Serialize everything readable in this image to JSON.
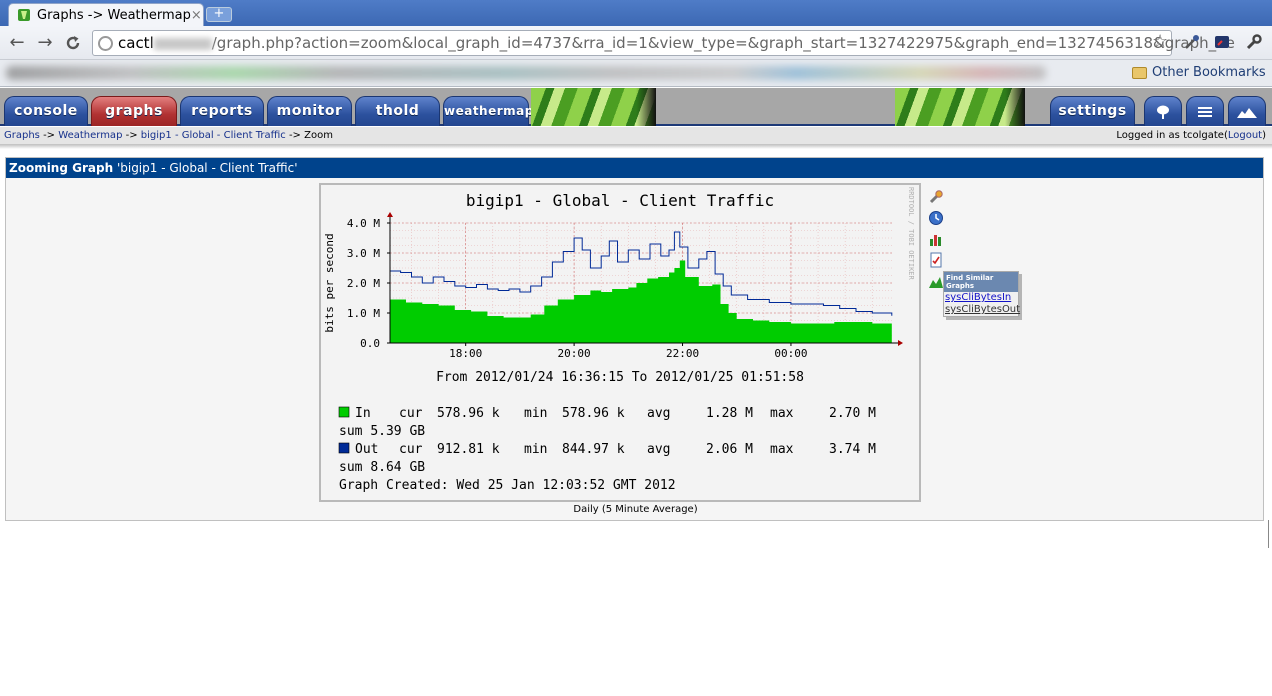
{
  "browser": {
    "tab_title": "Graphs -> Weathermap",
    "tab_close": "×",
    "new_tab": "+",
    "url_host": "cactl",
    "url_rest": "/graph.php?action=zoom&local_graph_id=4737&rra_id=1&view_type=&graph_start=1327422975&graph_end=1327456318&graph_he",
    "nav": {
      "back": "←",
      "forward": "→",
      "reload": "C"
    },
    "star": "☆",
    "other_bookmarks": "Other Bookmarks"
  },
  "cacti": {
    "tabs": [
      "console",
      "graphs",
      "reports",
      "monitor",
      "thold",
      "weathermap"
    ],
    "active_tab": "graphs",
    "right_tab": "settings",
    "icon_tabs": [
      "tree-view",
      "list-view",
      "preview"
    ],
    "breadcrumb": {
      "items": [
        "Graphs",
        "Weathermap",
        "bigip1 - Global - Client Traffic",
        "Zoom"
      ],
      "sep": "->"
    },
    "login": {
      "prefix": "Logged in as ",
      "user": "tcolgate",
      "open": "(",
      "logout": "Logout",
      "close": ")"
    }
  },
  "panel": {
    "title_bold": "Zooming Graph",
    "title_rest": " 'bigip1 - Global - Client Traffic'",
    "caption": "Daily (5 Minute Average)",
    "find_similar": "Find Similar Graphs",
    "similar_links": [
      "sysCliBytesIn",
      "sysCliBytesOut"
    ]
  },
  "chart_data": {
    "type": "area",
    "title": "bigip1 - Global - Client Traffic",
    "ylabel": "bits per second",
    "watermark": "RRDTOOL / TOBI OETIKER",
    "ylim": [
      0,
      4000000
    ],
    "yticks": [
      {
        "v": 0,
        "label": "0.0"
      },
      {
        "v": 1000000,
        "label": "1.0 M"
      },
      {
        "v": 2000000,
        "label": "2.0 M"
      },
      {
        "v": 3000000,
        "label": "3.0 M"
      },
      {
        "v": 4000000,
        "label": "4.0 M"
      }
    ],
    "x_range_hours": [
      16.604,
      25.864
    ],
    "xticks": [
      {
        "h": 18,
        "label": "18:00"
      },
      {
        "h": 20,
        "label": "20:00"
      },
      {
        "h": 22,
        "label": "22:00"
      },
      {
        "h": 24,
        "label": "00:00"
      }
    ],
    "series": [
      {
        "name": "In",
        "style": "area",
        "color": "#00cc00",
        "points": [
          [
            16.6,
            1.45
          ],
          [
            16.9,
            1.35
          ],
          [
            17.2,
            1.3
          ],
          [
            17.5,
            1.25
          ],
          [
            17.8,
            1.1
          ],
          [
            18.1,
            1.05
          ],
          [
            18.4,
            0.9
          ],
          [
            18.7,
            0.85
          ],
          [
            19.0,
            0.85
          ],
          [
            19.2,
            0.95
          ],
          [
            19.45,
            1.25
          ],
          [
            19.7,
            1.45
          ],
          [
            20.0,
            1.6
          ],
          [
            20.3,
            1.75
          ],
          [
            20.5,
            1.7
          ],
          [
            20.7,
            1.8
          ],
          [
            21.0,
            1.85
          ],
          [
            21.15,
            2.0
          ],
          [
            21.35,
            2.15
          ],
          [
            21.55,
            2.2
          ],
          [
            21.75,
            2.35
          ],
          [
            21.85,
            2.5
          ],
          [
            21.95,
            2.75
          ],
          [
            22.05,
            2.2
          ],
          [
            22.3,
            1.9
          ],
          [
            22.55,
            1.95
          ],
          [
            22.7,
            1.3
          ],
          [
            22.85,
            1.0
          ],
          [
            23.0,
            0.8
          ],
          [
            23.3,
            0.75
          ],
          [
            23.6,
            0.7
          ],
          [
            24.0,
            0.65
          ],
          [
            24.4,
            0.65
          ],
          [
            24.8,
            0.7
          ],
          [
            25.2,
            0.7
          ],
          [
            25.5,
            0.65
          ],
          [
            25.86,
            0.58
          ]
        ],
        "legend": {
          "cur": "578.96 k",
          "min": "578.96 k",
          "avg": "1.28 M",
          "max": "2.70 M",
          "sum": "5.39 GB"
        }
      },
      {
        "name": "Out",
        "style": "line",
        "color": "#002a97",
        "points": [
          [
            16.6,
            2.4
          ],
          [
            16.8,
            2.35
          ],
          [
            17.0,
            2.2
          ],
          [
            17.2,
            2.0
          ],
          [
            17.4,
            2.2
          ],
          [
            17.6,
            2.05
          ],
          [
            17.8,
            1.9
          ],
          [
            18.0,
            1.85
          ],
          [
            18.2,
            1.95
          ],
          [
            18.4,
            1.8
          ],
          [
            18.6,
            1.75
          ],
          [
            18.8,
            1.8
          ],
          [
            19.0,
            1.7
          ],
          [
            19.2,
            1.9
          ],
          [
            19.4,
            2.2
          ],
          [
            19.6,
            2.7
          ],
          [
            19.8,
            3.05
          ],
          [
            20.0,
            3.5
          ],
          [
            20.15,
            3.1
          ],
          [
            20.3,
            2.5
          ],
          [
            20.5,
            2.9
          ],
          [
            20.65,
            3.4
          ],
          [
            20.8,
            2.7
          ],
          [
            21.0,
            3.1
          ],
          [
            21.2,
            2.8
          ],
          [
            21.4,
            3.3
          ],
          [
            21.6,
            2.9
          ],
          [
            21.75,
            3.1
          ],
          [
            21.85,
            3.7
          ],
          [
            21.95,
            3.2
          ],
          [
            22.1,
            2.5
          ],
          [
            22.3,
            2.8
          ],
          [
            22.45,
            3.05
          ],
          [
            22.6,
            2.3
          ],
          [
            22.75,
            1.9
          ],
          [
            22.9,
            1.6
          ],
          [
            23.2,
            1.45
          ],
          [
            23.6,
            1.35
          ],
          [
            24.0,
            1.3
          ],
          [
            24.3,
            1.3
          ],
          [
            24.6,
            1.25
          ],
          [
            24.9,
            1.15
          ],
          [
            25.2,
            1.05
          ],
          [
            25.5,
            1.0
          ],
          [
            25.86,
            0.91
          ]
        ],
        "legend": {
          "cur": "912.81 k",
          "min": "844.97 k",
          "avg": "2.06 M",
          "max": "3.74 M",
          "sum": "8.64 GB"
        }
      }
    ],
    "legend_placement": "bottom",
    "legend_keys": {
      "cur": "cur",
      "min": "min",
      "avg": "avg",
      "max": "max",
      "sum": "sum"
    },
    "range_text": "From 2012/01/24 16:36:15 To 2012/01/25 01:51:58",
    "created_text": "Graph Created: Wed 25 Jan 12:03:52 GMT 2012",
    "grid": true
  }
}
